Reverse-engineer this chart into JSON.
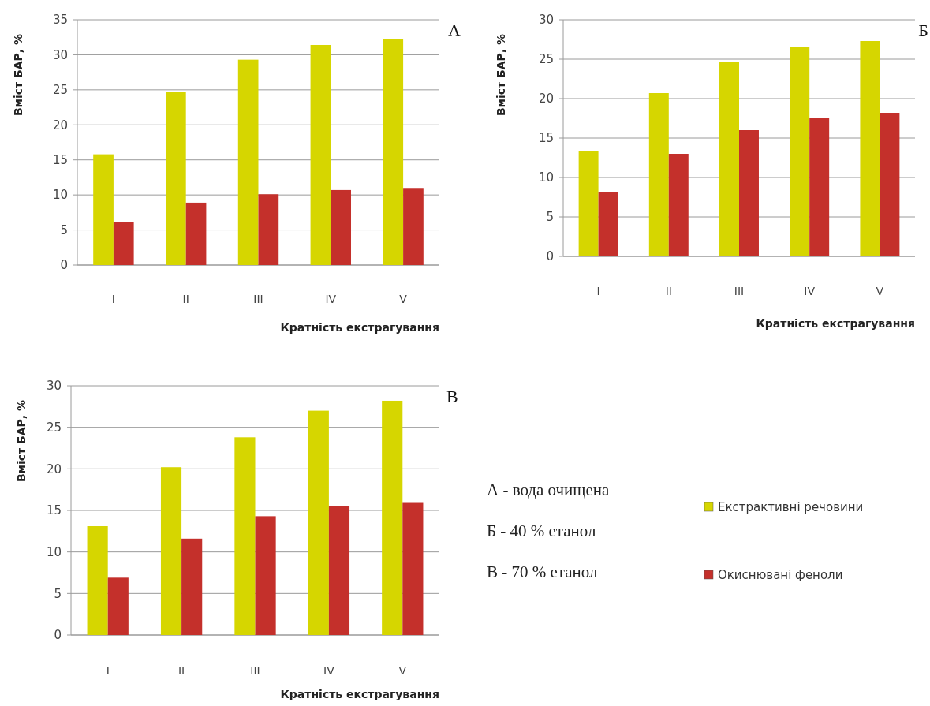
{
  "chart_data": [
    {
      "type": "bar",
      "title": "А",
      "xlabel": "Кратність екстрагування",
      "ylabel": "Вміст БАР, %",
      "categories": [
        "I",
        "II",
        "III",
        "IV",
        "V"
      ],
      "series": [
        {
          "color": "#d6d600",
          "values": [
            15.8,
            24.7,
            29.3,
            31.4,
            32.2
          ]
        },
        {
          "color": "#c4302b",
          "values": [
            6.1,
            8.9,
            10.1,
            10.7,
            11.0
          ]
        }
      ],
      "ylim": [
        0,
        35
      ],
      "yticks": [
        0,
        5,
        10,
        15,
        20,
        25,
        30,
        35
      ],
      "grid": "y"
    },
    {
      "type": "bar",
      "title": "Б",
      "xlabel": "Кратність екстрагування",
      "ylabel": "Вміст БАР, %",
      "categories": [
        "I",
        "II",
        "III",
        "IV",
        "V"
      ],
      "series": [
        {
          "color": "#d6d600",
          "values": [
            13.3,
            20.7,
            24.7,
            26.6,
            27.3
          ]
        },
        {
          "color": "#c4302b",
          "values": [
            8.2,
            13.0,
            16.0,
            17.5,
            18.2
          ]
        }
      ],
      "ylim": [
        0,
        30
      ],
      "yticks": [
        0,
        5,
        10,
        15,
        20,
        25,
        30
      ],
      "grid": "y"
    },
    {
      "type": "bar",
      "title": "В",
      "xlabel": "Кратність екстрагування",
      "ylabel": "Вміст БАР, %",
      "categories": [
        "I",
        "II",
        "III",
        "IV",
        "V"
      ],
      "series": [
        {
          "name": "Екстрактивні речовини",
          "color": "#d6d600",
          "values": [
            13.1,
            20.2,
            23.8,
            27.0,
            28.2
          ]
        },
        {
          "name": "Окиснювані феноли",
          "color": "#c4302b",
          "values": [
            6.9,
            11.6,
            14.3,
            15.5,
            15.9
          ]
        }
      ],
      "ylim": [
        0,
        30
      ],
      "yticks": [
        0,
        5,
        10,
        15,
        20,
        25,
        30
      ],
      "grid": "y",
      "legend": "right",
      "annotations": [
        "А - вода очищена",
        "Б - 40 % етанол",
        "В - 70 % етанол"
      ]
    }
  ]
}
